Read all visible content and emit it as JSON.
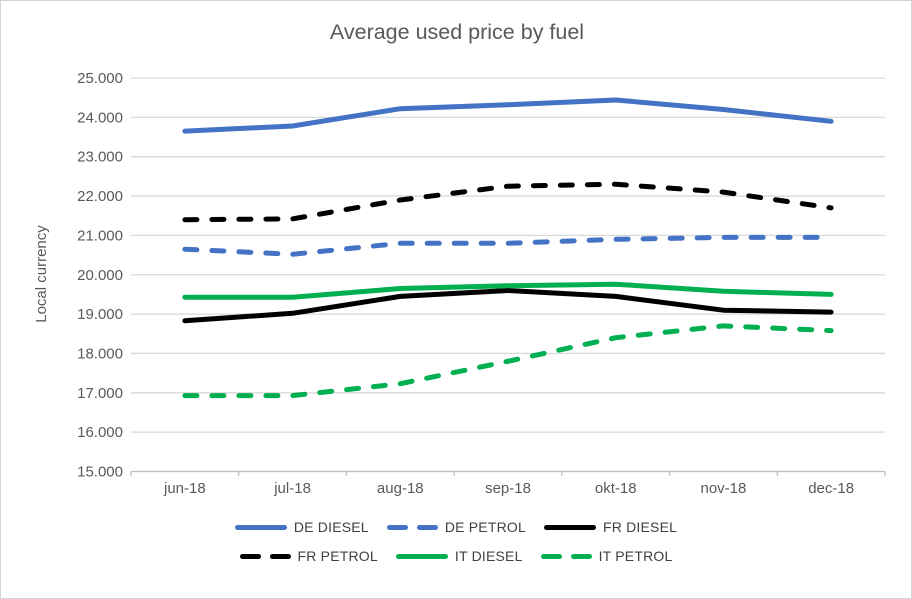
{
  "chart_data": {
    "type": "line",
    "title": "Average used price by fuel",
    "ylabel": "Local currency",
    "xlabel": "",
    "categories": [
      "jun-18",
      "jul-18",
      "aug-18",
      "sep-18",
      "okt-18",
      "nov-18",
      "dec-18"
    ],
    "series": [
      {
        "name": "DE DIESEL",
        "color": "#4472C4",
        "dash": false,
        "values": [
          23650,
          23780,
          24220,
          24320,
          24440,
          24200,
          23900
        ]
      },
      {
        "name": "DE PETROL",
        "color": "#4472C4",
        "dash": true,
        "values": [
          20650,
          20520,
          20800,
          20800,
          20900,
          20950,
          20950
        ]
      },
      {
        "name": "FR DIESEL",
        "color": "#000000",
        "dash": false,
        "values": [
          18830,
          19020,
          19450,
          19600,
          19450,
          19100,
          19050
        ]
      },
      {
        "name": "FR PETROL",
        "color": "#000000",
        "dash": true,
        "values": [
          21400,
          21420,
          21900,
          22250,
          22300,
          22100,
          21700
        ]
      },
      {
        "name": "IT DIESEL",
        "color": "#00B050",
        "dash": false,
        "values": [
          19430,
          19430,
          19650,
          19720,
          19760,
          19580,
          19500
        ]
      },
      {
        "name": "IT PETROL",
        "color": "#00B050",
        "dash": true,
        "values": [
          16930,
          16930,
          17230,
          17800,
          18400,
          18700,
          18580
        ]
      }
    ],
    "ylim": [
      15000,
      25000
    ],
    "y_tick_values": [
      25000,
      24000,
      23000,
      22000,
      21000,
      20000,
      19000,
      18000,
      17000,
      16000,
      15000
    ],
    "y_tick_labels": [
      "25.000",
      "24.000",
      "23.000",
      "22.000",
      "21.000",
      "20.000",
      "19.000",
      "18.000",
      "17.000",
      "16.000",
      "15.000"
    ],
    "grid": true,
    "legend_position": "bottom",
    "legend_rows": [
      [
        "DE DIESEL",
        "DE PETROL",
        "FR DIESEL"
      ],
      [
        "FR PETROL",
        "IT DIESEL",
        "IT PETROL"
      ]
    ]
  },
  "colors": {
    "background": "#FFFFFF",
    "frame_border": "#D3D3D3",
    "gridline": "#D9D9D9",
    "axis_line": "#BFBFBF",
    "axis_text": "#595959",
    "title_text": "#595959",
    "legend_text": "#404040",
    "blue": "#4472C4",
    "black": "#000000",
    "green": "#00B050"
  }
}
